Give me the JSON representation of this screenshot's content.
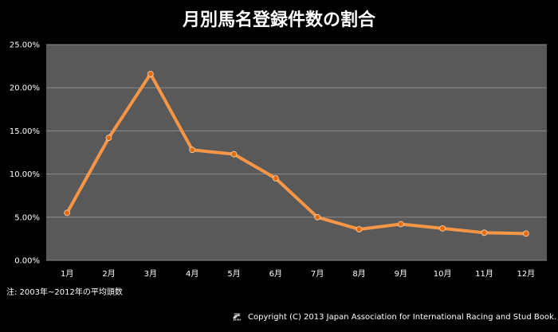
{
  "chart_data": {
    "type": "line",
    "title": "月別馬名登録件数の割合",
    "categories": [
      "1月",
      "2月",
      "3月",
      "4月",
      "5月",
      "6月",
      "7月",
      "8月",
      "9月",
      "10月",
      "11月",
      "12月"
    ],
    "series": [
      {
        "values": [
          5.5,
          14.2,
          21.6,
          12.8,
          12.3,
          9.5,
          5.0,
          3.6,
          4.2,
          3.7,
          3.2,
          3.1
        ]
      }
    ],
    "ylim": [
      0,
      25
    ],
    "yticks": [
      "0.00%",
      "5.00%",
      "10.00%",
      "15.00%",
      "20.00%",
      "25.00%"
    ],
    "grid": true,
    "colors": {
      "plot_bg": "#595959",
      "line": "#f79646",
      "marker": "#e46c0a",
      "grid": "#8c8c8c",
      "page_bg": "#000000"
    }
  },
  "note": "注: 2003年~2012年の平均頭数",
  "footer": {
    "logo_text": "JAIRS",
    "copyright": "Copyright (C) 2013  Japan Association for International Racing and Stud Book."
  }
}
